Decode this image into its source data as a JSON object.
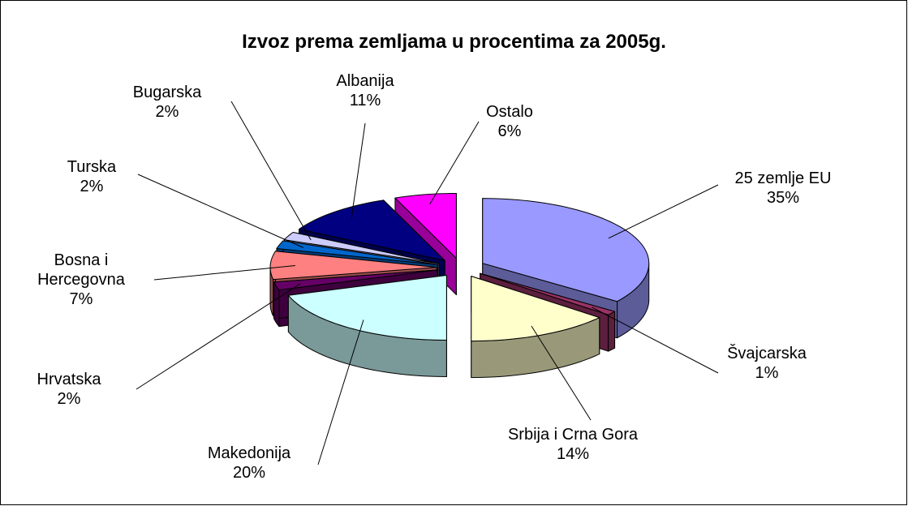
{
  "chart_data": {
    "type": "pie",
    "title": "Izvoz prema zemljama u procentima za 2005g.",
    "categories": [
      "25 zemlje EU",
      "Švajcarska",
      "Srbija i Crna Gora",
      "Makedonija",
      "Hrvatska",
      "Bosna i Hercegovna",
      "Turska",
      "Bugarska",
      "Albanija",
      "Ostalo"
    ],
    "values": [
      35,
      1,
      14,
      20,
      2,
      7,
      2,
      2,
      11,
      6
    ],
    "value_labels": [
      "35%",
      "1%",
      "14%",
      "20%",
      "2%",
      "7%",
      "2%",
      "2%",
      "11%",
      "6%"
    ],
    "colors": [
      "#9999ff",
      "#993366",
      "#ffffcc",
      "#ccffff",
      "#660066",
      "#ff8080",
      "#0066cc",
      "#ccccff",
      "#000080",
      "#ff00ff"
    ]
  }
}
